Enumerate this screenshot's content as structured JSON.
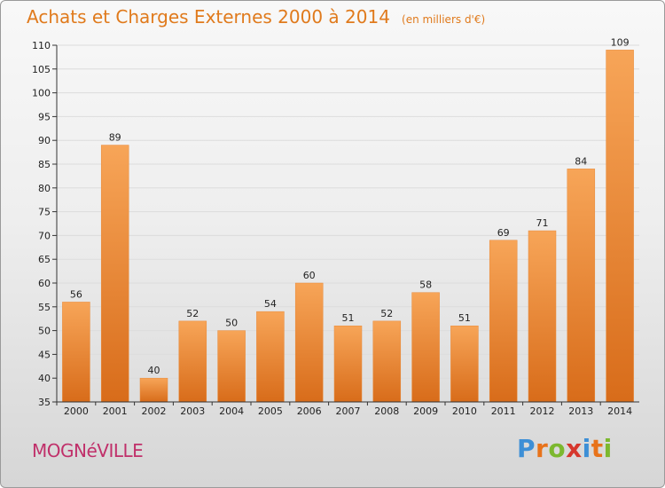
{
  "title": "Achats et Charges Externes 2000 à 2014",
  "subtitle": "(en milliers d'€)",
  "commune": "MOGNéVILLE",
  "brand": {
    "text": "Proxiti",
    "letter_colors": [
      "#3d8fd6",
      "#e8731a",
      "#7cb82f",
      "#d6372d",
      "#3d8fd6",
      "#e8731a",
      "#7cb82f"
    ]
  },
  "colors": {
    "title": "#e07a1c",
    "bar_top": "#f7a558",
    "bar_bottom": "#d86c1a",
    "commune": "#c0306a"
  },
  "chart_data": {
    "type": "bar",
    "categories": [
      "2000",
      "2001",
      "2002",
      "2003",
      "2004",
      "2005",
      "2006",
      "2007",
      "2008",
      "2009",
      "2010",
      "2011",
      "2012",
      "2013",
      "2014"
    ],
    "values": [
      56,
      89,
      40,
      52,
      50,
      54,
      60,
      51,
      52,
      58,
      51,
      69,
      71,
      84,
      109
    ],
    "ylim": [
      35,
      110
    ],
    "yticks": [
      35,
      40,
      45,
      50,
      55,
      60,
      65,
      70,
      75,
      80,
      85,
      90,
      95,
      100,
      105,
      110
    ],
    "grid": true,
    "legend": "none"
  }
}
